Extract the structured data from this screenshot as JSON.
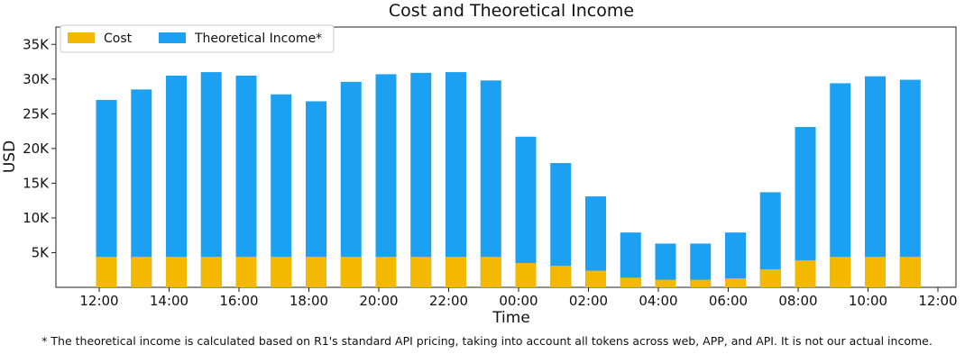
{
  "chart_data": {
    "type": "bar",
    "title": "Cost and Theoretical Income",
    "xlabel": "Time",
    "ylabel": "USD",
    "ylim": [
      0,
      37500
    ],
    "yticks": [
      5000,
      10000,
      15000,
      20000,
      25000,
      30000,
      35000
    ],
    "ytick_labels": [
      "5K",
      "10K",
      "15K",
      "20K",
      "25K",
      "30K",
      "35K"
    ],
    "xtick_labels": [
      "12:00",
      "14:00",
      "16:00",
      "18:00",
      "20:00",
      "22:00",
      "00:00",
      "02:00",
      "04:00",
      "06:00",
      "08:00",
      "10:00",
      "12:00"
    ],
    "categories": [
      "12:00",
      "13:00",
      "14:00",
      "15:00",
      "16:00",
      "17:00",
      "18:00",
      "19:00",
      "20:00",
      "21:00",
      "22:00",
      "23:00",
      "00:00",
      "01:00",
      "02:00",
      "03:00",
      "04:00",
      "05:00",
      "06:00",
      "07:00",
      "08:00",
      "09:00",
      "10:00",
      "11:00"
    ],
    "series": [
      {
        "name": "Cost",
        "color": "#f5b800",
        "values": [
          4400,
          4400,
          4400,
          4400,
          4400,
          4400,
          4400,
          4400,
          4400,
          4400,
          4400,
          4400,
          3500,
          3100,
          2400,
          1400,
          1100,
          1100,
          1300,
          2600,
          3900,
          4400,
          4400,
          4400
        ]
      },
      {
        "name": "Theoretical Income*",
        "color": "#1ba0f2",
        "values": [
          27000,
          28500,
          30500,
          31000,
          30500,
          27800,
          26800,
          29600,
          30700,
          30900,
          31000,
          29800,
          21700,
          17900,
          13100,
          7900,
          6300,
          6300,
          7900,
          13700,
          23100,
          29400,
          30400,
          29900
        ]
      }
    ],
    "grid": false,
    "legend": "top-left"
  },
  "footnote": "* The theoretical income is calculated based on R1's standard API pricing, taking into account all tokens across web, APP, and API. It is not our actual income."
}
